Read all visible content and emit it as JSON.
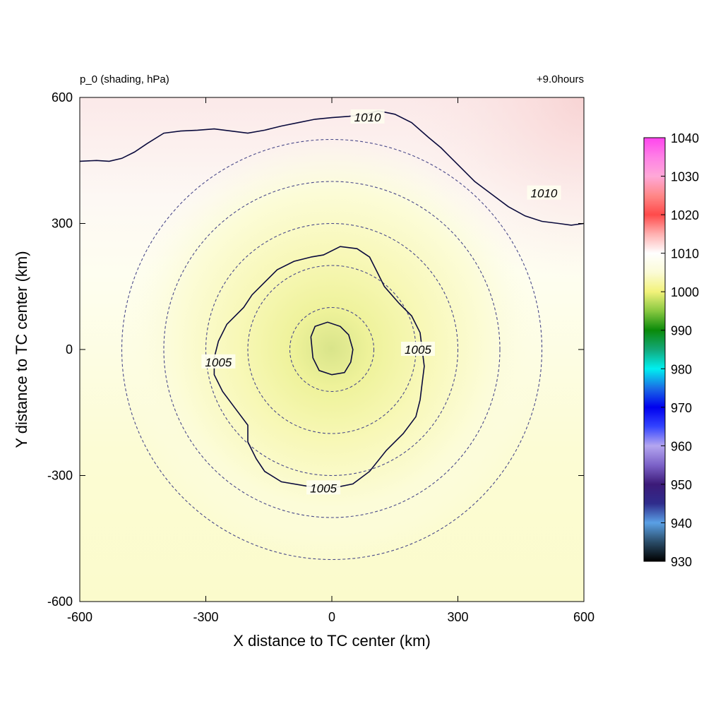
{
  "chart_data": {
    "type": "heatmap",
    "variable_label": "p_0 (shading, hPa)",
    "time_label": "+9.0hours",
    "xlabel": "X distance to TC center (km)",
    "ylabel": "Y distance to TC center (km)",
    "xlim": [
      -600,
      600
    ],
    "ylim": [
      -600,
      600
    ],
    "x_ticks": [
      -600,
      -300,
      0,
      300,
      600
    ],
    "y_ticks": [
      -600,
      -300,
      0,
      300,
      600
    ],
    "x_tick_labels": [
      "-600",
      "-300",
      "0",
      "300",
      "600"
    ],
    "y_tick_labels": [
      "-600",
      "-300",
      "0",
      "300",
      "600"
    ],
    "field": {
      "center_value": 997,
      "north_value": 1011,
      "northeast_corner_value": 1013,
      "south_value": 1003
    },
    "contours": [
      {
        "level": 1010,
        "label": "1010",
        "points": [
          [
            -600,
            448
          ],
          [
            -560,
            450
          ],
          [
            -530,
            448
          ],
          [
            -500,
            455
          ],
          [
            -470,
            470
          ],
          [
            -440,
            490
          ],
          [
            -400,
            515
          ],
          [
            -360,
            520
          ],
          [
            -320,
            522
          ],
          [
            -280,
            525
          ],
          [
            -240,
            520
          ],
          [
            -200,
            515
          ],
          [
            -160,
            522
          ],
          [
            -120,
            532
          ],
          [
            -80,
            540
          ],
          [
            -40,
            548
          ],
          [
            0,
            552
          ],
          [
            40,
            555
          ],
          [
            80,
            560
          ],
          [
            110,
            568
          ],
          [
            150,
            560
          ],
          [
            190,
            540
          ],
          [
            230,
            505
          ],
          [
            260,
            480
          ],
          [
            300,
            440
          ],
          [
            340,
            400
          ],
          [
            380,
            370
          ],
          [
            420,
            340
          ],
          [
            460,
            318
          ],
          [
            500,
            305
          ],
          [
            540,
            300
          ],
          [
            570,
            296
          ],
          [
            600,
            300
          ]
        ],
        "label_positions": [
          [
            85,
            553
          ],
          [
            505,
            372
          ]
        ]
      },
      {
        "level": 1005,
        "label": "1005",
        "points": [
          [
            -50,
            220
          ],
          [
            -20,
            225
          ],
          [
            20,
            245
          ],
          [
            60,
            240
          ],
          [
            90,
            220
          ],
          [
            110,
            180
          ],
          [
            125,
            150
          ],
          [
            160,
            110
          ],
          [
            190,
            80
          ],
          [
            210,
            40
          ],
          [
            215,
            0
          ],
          [
            220,
            -40
          ],
          [
            215,
            -80
          ],
          [
            210,
            -120
          ],
          [
            200,
            -160
          ],
          [
            170,
            -200
          ],
          [
            130,
            -240
          ],
          [
            90,
            -290
          ],
          [
            50,
            -320
          ],
          [
            0,
            -330
          ],
          [
            -60,
            -325
          ],
          [
            -120,
            -315
          ],
          [
            -160,
            -290
          ],
          [
            -180,
            -260
          ],
          [
            -200,
            -220
          ],
          [
            -200,
            -180
          ],
          [
            -230,
            -140
          ],
          [
            -260,
            -100
          ],
          [
            -280,
            -60
          ],
          [
            -280,
            -20
          ],
          [
            -270,
            20
          ],
          [
            -250,
            60
          ],
          [
            -210,
            100
          ],
          [
            -190,
            130
          ],
          [
            -160,
            160
          ],
          [
            -130,
            190
          ],
          [
            -90,
            210
          ],
          [
            -50,
            220
          ]
        ],
        "label_positions": [
          [
            -270,
            -30
          ],
          [
            205,
            0
          ],
          [
            -20,
            -330
          ]
        ]
      },
      {
        "level": 1000,
        "points": [
          [
            -50,
            30
          ],
          [
            -40,
            55
          ],
          [
            -10,
            65
          ],
          [
            20,
            55
          ],
          [
            40,
            35
          ],
          [
            50,
            0
          ],
          [
            45,
            -30
          ],
          [
            30,
            -55
          ],
          [
            0,
            -60
          ],
          [
            -30,
            -50
          ],
          [
            -45,
            -20
          ],
          [
            -50,
            30
          ]
        ]
      }
    ],
    "radius_rings_km": [
      100,
      200,
      300,
      400,
      500
    ],
    "colorbar": {
      "ticks": [
        1040,
        1030,
        1020,
        1010,
        1000,
        990,
        980,
        970,
        960,
        950,
        940,
        930
      ],
      "range": [
        930,
        1040
      ],
      "colors": [
        {
          "value": 930,
          "color": "#000000"
        },
        {
          "value": 935,
          "color": "#2a4c68"
        },
        {
          "value": 940,
          "color": "#5aa0e6"
        },
        {
          "value": 945,
          "color": "#2f2c8c"
        },
        {
          "value": 950,
          "color": "#3c1a78"
        },
        {
          "value": 955,
          "color": "#7c62c8"
        },
        {
          "value": 960,
          "color": "#b4a6f0"
        },
        {
          "value": 965,
          "color": "#3344ff"
        },
        {
          "value": 970,
          "color": "#0000ee"
        },
        {
          "value": 975,
          "color": "#1a6ee6"
        },
        {
          "value": 980,
          "color": "#00f0f0"
        },
        {
          "value": 985,
          "color": "#12a878"
        },
        {
          "value": 990,
          "color": "#0a8a0a"
        },
        {
          "value": 995,
          "color": "#88c840"
        },
        {
          "value": 1000,
          "color": "#f2f27a"
        },
        {
          "value": 1005,
          "color": "#fbfbd6"
        },
        {
          "value": 1010,
          "color": "#ffffff"
        },
        {
          "value": 1015,
          "color": "#ffb0b0"
        },
        {
          "value": 1020,
          "color": "#ff4a4a"
        },
        {
          "value": 1025,
          "color": "#ff8888"
        },
        {
          "value": 1030,
          "color": "#ffa8d8"
        },
        {
          "value": 1035,
          "color": "#ff80e6"
        },
        {
          "value": 1040,
          "color": "#ff44ee"
        }
      ]
    }
  }
}
